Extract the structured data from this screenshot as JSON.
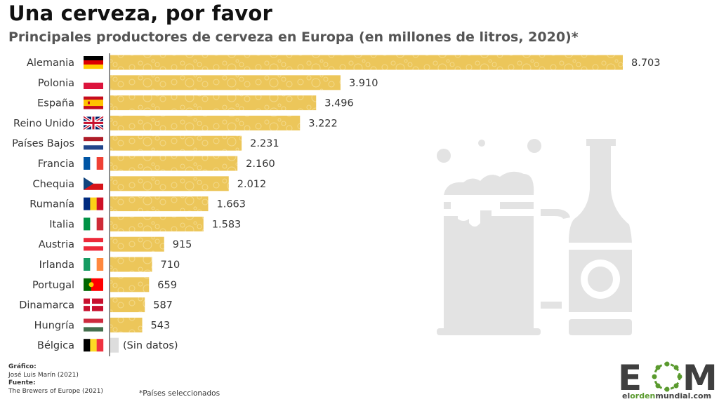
{
  "header": {
    "title": "Una cerveza, por favor",
    "subtitle": "Principales productores de cerveza en Europa (en millones de litros, 2020)*"
  },
  "chart_data": {
    "type": "bar",
    "orientation": "horizontal",
    "title": "Una cerveza, por favor",
    "subtitle": "Principales productores de cerveza en Europa (en millones de litros, 2020)*",
    "xlabel": "",
    "ylabel": "",
    "unit": "millones de litros",
    "grid": false,
    "categories": [
      "Alemania",
      "Polonia",
      "España",
      "Reino Unido",
      "Países Bajos",
      "Francia",
      "Chequia",
      "Rumanía",
      "Italia",
      "Austria",
      "Irlanda",
      "Portugal",
      "Dinamarca",
      "Hungría",
      "Bélgica"
    ],
    "values": [
      8703,
      3910,
      3496,
      3222,
      2231,
      2160,
      2012,
      1663,
      1583,
      915,
      710,
      659,
      587,
      543,
      null
    ],
    "value_labels": [
      "8.703",
      "3.910",
      "3.496",
      "3.222",
      "2.231",
      "2.160",
      "2.012",
      "1.663",
      "1.583",
      "915",
      "710",
      "659",
      "587",
      "543",
      "(Sin datos)"
    ],
    "flags": [
      {
        "country": "Alemania",
        "stripes": "h",
        "colors": [
          "#000000",
          "#dd0000",
          "#ffce00"
        ]
      },
      {
        "country": "Polonia",
        "stripes": "h",
        "colors": [
          "#ffffff",
          "#dc143c"
        ]
      },
      {
        "country": "España",
        "stripes": "spain",
        "colors": [
          "#c60b1e",
          "#ffc400",
          "#c60b1e"
        ]
      },
      {
        "country": "Reino Unido",
        "stripes": "uk",
        "colors": [
          "#012169",
          "#ffffff",
          "#c8102e"
        ]
      },
      {
        "country": "Países Bajos",
        "stripes": "h",
        "colors": [
          "#ae1c28",
          "#ffffff",
          "#21468b"
        ]
      },
      {
        "country": "Francia",
        "stripes": "v",
        "colors": [
          "#0055a4",
          "#ffffff",
          "#ef4135"
        ]
      },
      {
        "country": "Chequia",
        "stripes": "czech",
        "colors": [
          "#ffffff",
          "#d7141a",
          "#11457e"
        ]
      },
      {
        "country": "Rumanía",
        "stripes": "v",
        "colors": [
          "#002b7f",
          "#fcd116",
          "#ce1126"
        ]
      },
      {
        "country": "Italia",
        "stripes": "v",
        "colors": [
          "#009246",
          "#ffffff",
          "#ce2b37"
        ]
      },
      {
        "country": "Austria",
        "stripes": "h",
        "colors": [
          "#ed2939",
          "#ffffff",
          "#ed2939"
        ]
      },
      {
        "country": "Irlanda",
        "stripes": "v",
        "colors": [
          "#169b62",
          "#ffffff",
          "#ff883e"
        ]
      },
      {
        "country": "Portugal",
        "stripes": "portugal",
        "colors": [
          "#006600",
          "#ff0000"
        ]
      },
      {
        "country": "Dinamarca",
        "stripes": "nordic",
        "colors": [
          "#c8102e",
          "#ffffff"
        ]
      },
      {
        "country": "Hungría",
        "stripes": "h",
        "colors": [
          "#cd2a3e",
          "#ffffff",
          "#436f4d"
        ]
      },
      {
        "country": "Bélgica",
        "stripes": "v",
        "colors": [
          "#000000",
          "#fdda24",
          "#ef3340"
        ]
      }
    ],
    "xlim": [
      0,
      8703
    ],
    "colors": {
      "bar": "#ecc65a",
      "bubble": "#f3d98a",
      "no_data": "#dddddd",
      "axis": "#666666"
    }
  },
  "footer": {
    "graphic_label": "Gráfico:",
    "graphic_author": "José Luis Marín (2021)",
    "source_label": "Fuente:",
    "source_name": "The Brewers of Europe (2021)",
    "note": "*Países seleccionados"
  },
  "logo": {
    "letters_left": "E",
    "letters_right": "M",
    "url_part1": "el",
    "url_part2": "orden",
    "url_part3": "mundial",
    "url_part4": ".com",
    "colors": {
      "dark": "#3f3f3f",
      "green": "#5a9a2e"
    }
  },
  "decor": {
    "illustration": "beer-mug-and-bottle-icon",
    "color": "#e3e3e3"
  }
}
